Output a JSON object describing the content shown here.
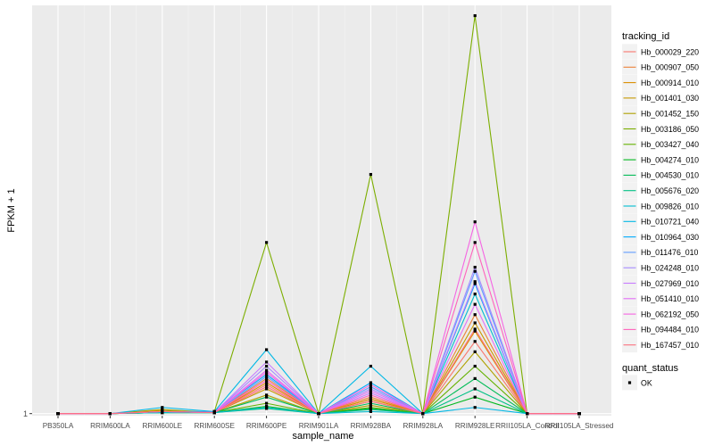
{
  "chart_data": {
    "type": "line",
    "title": "",
    "xlabel": "sample_name",
    "ylabel": "FPKM + 1",
    "y_tick_labels": [
      "1"
    ],
    "y_tick_values": [
      1
    ],
    "ylim": [
      0.9,
      20.8
    ],
    "categories": [
      "PB350LA",
      "RRIM600LA",
      "RRIM600LE",
      "RRIM600SE",
      "RRIM600PE",
      "RRIM901LA",
      "RRIM928BA",
      "RRIM928LA",
      "RRIM928LE",
      "RRII105LA_Control",
      "RRII105LA_Stressed"
    ],
    "legend_title": "tracking_id",
    "shape_legend_title": "quant_status",
    "shape_legend_items": [
      "OK"
    ],
    "series": [
      {
        "name": "Hb_000029_220",
        "color": "#F8766D",
        "values": [
          1,
          1,
          1.1,
          1.05,
          2.4,
          1,
          1.7,
          1,
          4.5,
          1,
          1
        ]
      },
      {
        "name": "Hb_000907_050",
        "color": "#EC8239",
        "values": [
          1,
          1,
          1.1,
          1.05,
          2.7,
          1,
          1.8,
          1,
          5.8,
          1,
          1
        ]
      },
      {
        "name": "Hb_000914_010",
        "color": "#DB8E00",
        "values": [
          1,
          1,
          1.1,
          1.05,
          2.5,
          1,
          1.7,
          1,
          5.0,
          1,
          1
        ]
      },
      {
        "name": "Hb_001401_030",
        "color": "#C79800",
        "values": [
          1,
          1,
          1.15,
          1.05,
          2.2,
          1,
          1.6,
          1,
          5.4,
          1,
          1
        ]
      },
      {
        "name": "Hb_001452_150",
        "color": "#AFA100",
        "values": [
          1,
          1,
          1.2,
          1.05,
          1.9,
          1,
          1.4,
          1,
          4.0,
          1,
          1
        ]
      },
      {
        "name": "Hb_003186_050",
        "color": "#7CAE00",
        "values": [
          1,
          1,
          1.05,
          1.1,
          9.3,
          1,
          12.6,
          1,
          20.3,
          1,
          1
        ]
      },
      {
        "name": "Hb_003427_040",
        "color": "#64B200",
        "values": [
          1,
          1,
          1.05,
          1.05,
          1.5,
          1,
          1.3,
          1,
          3.3,
          1,
          1
        ]
      },
      {
        "name": "Hb_004274_010",
        "color": "#00B81F",
        "values": [
          1,
          1,
          1.05,
          1.05,
          1.35,
          1,
          1.25,
          1,
          1.8,
          1,
          1
        ]
      },
      {
        "name": "Hb_004530_010",
        "color": "#00BC56",
        "values": [
          1,
          1,
          1.05,
          1.05,
          1.8,
          1,
          1.5,
          1,
          2.7,
          1,
          1
        ]
      },
      {
        "name": "Hb_005676_020",
        "color": "#00C085",
        "values": [
          1,
          1,
          1.05,
          1.05,
          1.25,
          1,
          1.2,
          1,
          2.2,
          1,
          1
        ]
      },
      {
        "name": "Hb_009826_010",
        "color": "#00BDD0",
        "values": [
          1,
          1,
          1.05,
          1.05,
          1.3,
          1,
          1.1,
          1,
          6.8,
          1,
          1
        ]
      },
      {
        "name": "Hb_010721_040",
        "color": "#00B8E5",
        "values": [
          1,
          1,
          1.3,
          1.1,
          4.1,
          1,
          3.3,
          1,
          1.3,
          1,
          1
        ]
      },
      {
        "name": "Hb_010964_030",
        "color": "#00ABFD",
        "values": [
          1,
          1,
          1.1,
          1.1,
          2.9,
          1,
          2.5,
          1,
          7.3,
          1,
          1
        ]
      },
      {
        "name": "Hb_011476_010",
        "color": "#619CFF",
        "values": [
          1,
          1,
          1.1,
          1.05,
          2.8,
          1,
          2.3,
          1,
          7.9,
          1,
          1
        ]
      },
      {
        "name": "Hb_024248_010",
        "color": "#A58AFF",
        "values": [
          1,
          1,
          1.1,
          1.05,
          3.3,
          1,
          2.2,
          1,
          8.1,
          1,
          1
        ]
      },
      {
        "name": "Hb_027969_010",
        "color": "#C77CFF",
        "values": [
          1,
          1,
          1.1,
          1.05,
          3.5,
          1,
          2.0,
          1,
          7.4,
          1,
          1
        ]
      },
      {
        "name": "Hb_051410_010",
        "color": "#E36EF6",
        "values": [
          1,
          1,
          1.1,
          1.05,
          3.1,
          1,
          2.1,
          1,
          6.3,
          1,
          1
        ]
      },
      {
        "name": "Hb_062192_050",
        "color": "#F564E3",
        "values": [
          1,
          1,
          1.1,
          1.05,
          3.0,
          1,
          2.4,
          1,
          10.3,
          1,
          1
        ]
      },
      {
        "name": "Hb_094484_010",
        "color": "#FF62BC",
        "values": [
          1,
          1,
          1.1,
          1.05,
          2.6,
          1,
          1.9,
          1,
          9.3,
          1,
          1
        ]
      },
      {
        "name": "Hb_167457_010",
        "color": "#FC717F",
        "values": [
          1,
          1,
          1.1,
          1.05,
          2.3,
          1,
          1.6,
          1,
          5.1,
          1,
          1
        ]
      }
    ]
  }
}
